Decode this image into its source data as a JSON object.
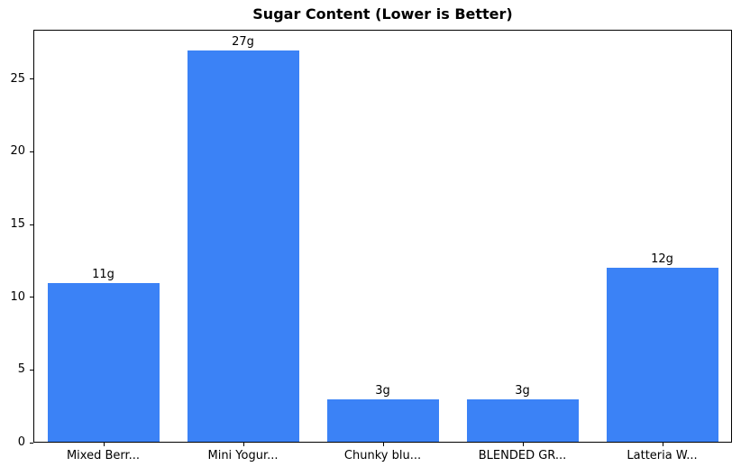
{
  "chart_data": {
    "type": "bar",
    "title": "Sugar Content (Lower is Better)",
    "categories": [
      "Mixed Berr...",
      "Mini Yogur...",
      "Chunky blu...",
      "BLENDED GR...",
      "Latteria W..."
    ],
    "values": [
      11,
      27,
      3,
      3,
      12
    ],
    "value_labels": [
      "11g",
      "27g",
      "3g",
      "3g",
      "12g"
    ],
    "bar_color": "#3b82f6",
    "xlabel": "",
    "ylabel": "",
    "ylim": [
      0,
      28.4
    ],
    "yticks": [
      0,
      5,
      10,
      15,
      20,
      25
    ],
    "grid": false,
    "legend": null,
    "bar_width_fraction": 0.8
  }
}
